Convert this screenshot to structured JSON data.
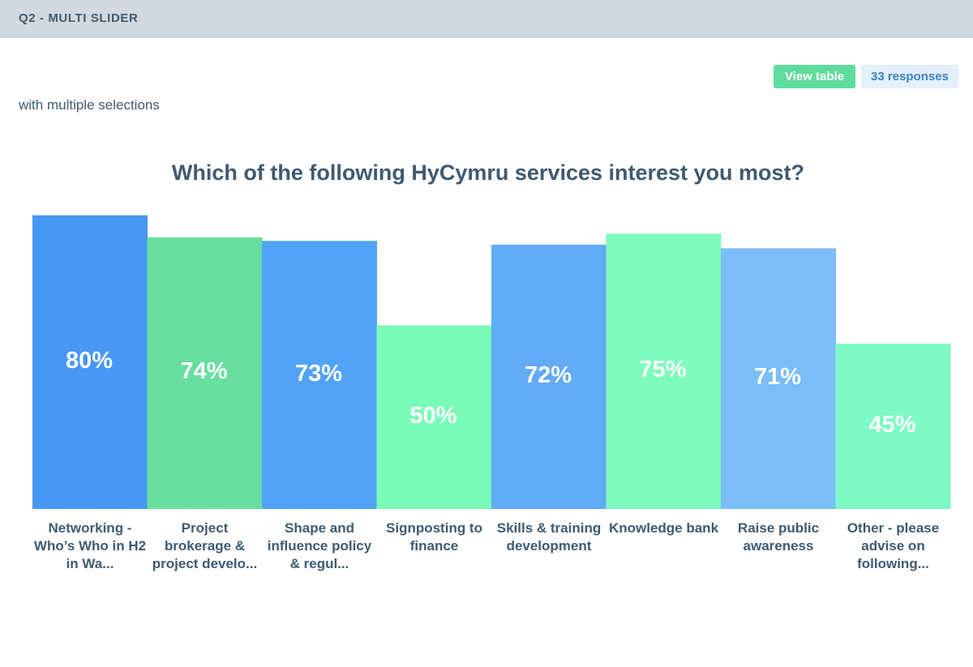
{
  "header": {
    "title": "Q2 - MULTI SLIDER"
  },
  "toolbar": {
    "view_table_label": "View table",
    "responses_label": "33 responses"
  },
  "subtitle": "with multiple selections",
  "chart_data": {
    "type": "bar",
    "title": "Which of the following HyCymru services interest you most?",
    "xlabel": "",
    "ylabel": "",
    "ylim": [
      0,
      100
    ],
    "grid": false,
    "legend": "none",
    "categories": [
      "Networking - Who’s Who in H2 in Wa...",
      "Project brokerage & project develo...",
      "Shape and influence policy & regul...",
      "Signposting to finance",
      "Skills & training development",
      "Knowledge bank",
      "Raise public awareness",
      "Other - please advise on following..."
    ],
    "values": [
      80,
      74,
      73,
      50,
      72,
      75,
      71,
      45
    ],
    "data_labels": [
      "80%",
      "74%",
      "73%",
      "50%",
      "72%",
      "75%",
      "71%",
      "45%"
    ],
    "colors": [
      "#4797f3",
      "#67de9f",
      "#52a3f5",
      "#7bfbb8",
      "#62abf6",
      "#7dfcbd",
      "#7bbdf7",
      "#7dfac5"
    ]
  }
}
